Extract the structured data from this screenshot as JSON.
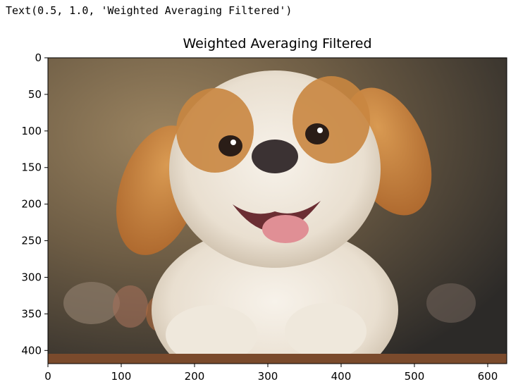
{
  "output_text": "Text(0.5, 1.0, 'Weighted Averaging Filtered')",
  "chart_data": {
    "type": "image",
    "title": "Weighted Averaging Filtered",
    "xlabel": "",
    "ylabel": "",
    "image_width": 626,
    "image_height": 418,
    "xlim": [
      0,
      626
    ],
    "ylim": [
      418,
      0
    ],
    "xticks": [
      0,
      100,
      200,
      300,
      400,
      500,
      600
    ],
    "yticks": [
      0,
      50,
      100,
      150,
      200,
      250,
      300,
      350,
      400
    ],
    "image_content": "puppy-photo"
  },
  "colors": {
    "bg_dark": "#2f2a22",
    "bg_warm": "#8f7a57",
    "fur_orange": "#c9853e",
    "fur_white": "#f1ece2",
    "nose": "#3b3233",
    "tongue": "#e08f95",
    "table": "#7a4a2c"
  }
}
